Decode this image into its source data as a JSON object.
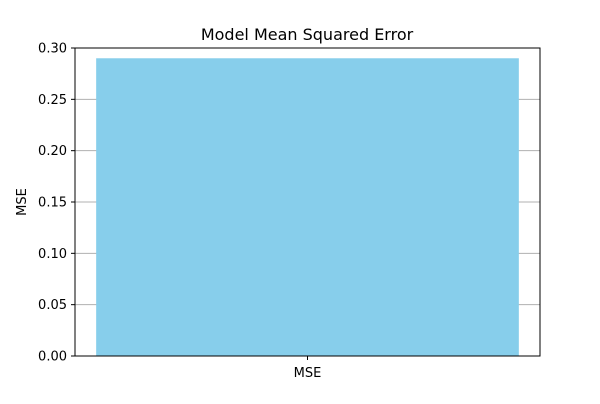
{
  "chart_data": {
    "type": "bar",
    "title": "Model Mean Squared Error",
    "xlabel": "",
    "ylabel": "MSE",
    "categories": [
      "MSE"
    ],
    "values": [
      0.29
    ],
    "ylim": [
      0,
      0.3
    ],
    "yticks": [
      "0.00",
      "0.05",
      "0.10",
      "0.15",
      "0.20",
      "0.25",
      "0.30"
    ],
    "grid": "y",
    "bar_color": "#87ceeb",
    "grid_color": "#b0b0b0"
  }
}
